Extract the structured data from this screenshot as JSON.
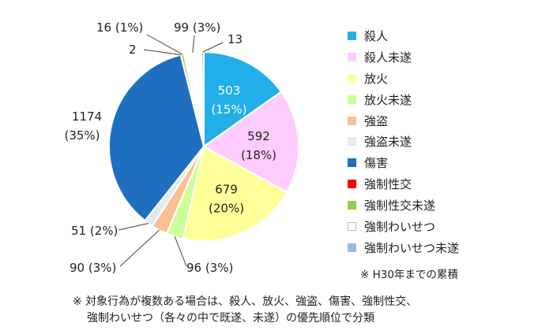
{
  "chart_data": {
    "type": "pie",
    "start_angle_deg": 0,
    "direction": "clockwise",
    "slices": [
      {
        "name": "殺人",
        "value": 503,
        "label": "503",
        "percent_label": "(15%)",
        "color": "#22AEE8",
        "label_mode": "inside",
        "text_color": "#ffffff"
      },
      {
        "name": "殺人未遂",
        "value": 592,
        "label": "592",
        "percent_label": "(18%)",
        "color": "#FFCCFF",
        "label_mode": "inside",
        "text_color": "#222222"
      },
      {
        "name": "放火",
        "value": 679,
        "label": "679",
        "percent_label": "(20%)",
        "color": "#FFFF99",
        "label_mode": "inside",
        "text_color": "#222222"
      },
      {
        "name": "放火未遂",
        "value": 96,
        "label": "96 (3%)",
        "percent_label": "",
        "color": "#CCFF99",
        "label_mode": "outside",
        "text_color": "#222222"
      },
      {
        "name": "強盗",
        "value": 90,
        "label": "90 (3%)",
        "percent_label": "",
        "color": "#FAC090",
        "label_mode": "outside",
        "text_color": "#222222"
      },
      {
        "name": "強盗未遂",
        "value": 51,
        "label": "51 (2%)",
        "percent_label": "",
        "color": "#DDEBF7",
        "label_mode": "outside",
        "text_color": "#222222"
      },
      {
        "name": "傷害",
        "value": 1174,
        "label": "1174",
        "percent_label": "(35%)",
        "color": "#1F6EBF",
        "label_mode": "outside",
        "text_color": "#222222"
      },
      {
        "name": "強制性交",
        "value": 2,
        "label": "2",
        "percent_label": "",
        "color": "#FF0000",
        "label_mode": "outside",
        "text_color": "#222222"
      },
      {
        "name": "強制性交未遂",
        "value": 16,
        "label": "16 (1%)",
        "percent_label": "",
        "color": "#92D050",
        "label_mode": "outside",
        "text_color": "#222222"
      },
      {
        "name": "強制わいせつ",
        "value": 99,
        "label": "99 (3%)",
        "percent_label": "",
        "color": "#FFFFFF",
        "label_mode": "outside",
        "text_color": "#222222"
      },
      {
        "name": "強制わいせつ未遂",
        "value": 13,
        "label": "13",
        "percent_label": "",
        "color": "#9DB8E0",
        "label_mode": "outside",
        "text_color": "#222222"
      }
    ],
    "legend_position": "right"
  },
  "note": "※ H30年までの累積",
  "footnote": {
    "line1": "※ 対象行為が複数ある場合は、殺人、放火、強盗、傷害、強制性交、",
    "line2": "強制わいせつ（各々の中で既遂、未遂）の優先順位で分類"
  }
}
